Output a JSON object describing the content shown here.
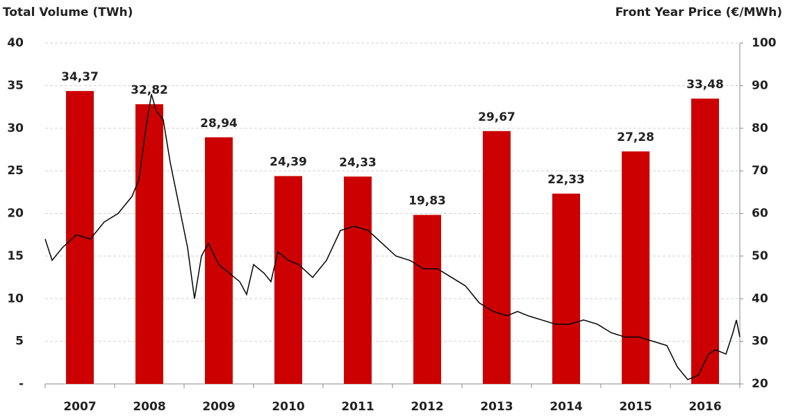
{
  "chart_data": {
    "type": "bar-line",
    "y_title": "Total Volume (TWh)",
    "y2_title": "Front Year Price (€/MWh)",
    "categories": [
      "2007",
      "2008",
      "2009",
      "2010",
      "2011",
      "2012",
      "2013",
      "2014",
      "2015",
      "2016"
    ],
    "series": [
      {
        "type": "bar",
        "color": "#cc0000",
        "values": [
          34.37,
          32.82,
          28.94,
          24.39,
          24.33,
          19.83,
          29.67,
          22.33,
          27.28,
          33.48
        ],
        "value_labels": [
          "34,37",
          "32,82",
          "28,94",
          "24,39",
          "24,33",
          "19,83",
          "29,67",
          "22,33",
          "27,28",
          "33,48"
        ]
      },
      {
        "type": "line",
        "axis": "y2",
        "color": "#000000",
        "x": [
          2007.0,
          2007.1,
          2007.25,
          2007.45,
          2007.65,
          2007.85,
          2008.05,
          2008.25,
          2008.35,
          2008.45,
          2008.53,
          2008.6,
          2008.7,
          2008.8,
          2008.95,
          2009.05,
          2009.15,
          2009.25,
          2009.35,
          2009.5,
          2009.65,
          2009.8,
          2009.9,
          2010.0,
          2010.15,
          2010.25,
          2010.35,
          2010.5,
          2010.65,
          2010.85,
          2011.05,
          2011.25,
          2011.45,
          2011.65,
          2011.85,
          2012.05,
          2012.25,
          2012.45,
          2012.65,
          2012.85,
          2013.05,
          2013.25,
          2013.45,
          2013.65,
          2013.8,
          2013.95,
          2014.15,
          2014.35,
          2014.55,
          2014.75,
          2014.95,
          2015.15,
          2015.35,
          2015.55,
          2015.75,
          2015.95,
          2016.1,
          2016.25,
          2016.4,
          2016.55,
          2016.65,
          2016.8,
          2016.9,
          2016.95,
          2017.0
        ],
        "values": [
          54,
          49,
          52,
          55,
          54,
          58,
          60,
          64,
          68,
          80,
          88,
          84,
          82,
          72,
          60,
          52,
          40,
          50,
          53,
          48,
          46,
          44,
          41,
          48,
          46,
          44,
          51,
          49,
          48,
          45,
          49,
          56,
          57,
          56,
          53,
          50,
          49,
          47,
          47,
          45,
          43,
          39,
          37,
          36,
          37,
          36,
          35,
          34,
          34,
          35,
          34,
          32,
          31,
          31,
          30,
          29,
          24,
          21,
          22,
          27,
          28,
          27,
          32,
          35,
          31
        ]
      }
    ],
    "ylim": [
      0,
      40
    ],
    "yticks": [
      {
        "value": 0,
        "label": "-"
      },
      5,
      10,
      15,
      20,
      25,
      30,
      35,
      40
    ],
    "y2lim": [
      20,
      100
    ],
    "y2ticks": [
      20,
      30,
      40,
      50,
      60,
      70,
      80,
      90,
      100
    ],
    "xlim": [
      2007,
      2017
    ],
    "grid": true
  }
}
